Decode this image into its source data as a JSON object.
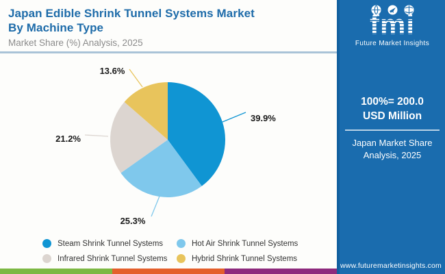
{
  "header": {
    "title_lines": [
      "Japan Edible Shrink Tunnel Systems Market",
      "By Machine Type"
    ],
    "subtitle": "Market Share (%) Analysis, 2025",
    "title_color": "#1d6ba9"
  },
  "brand": {
    "logo_text": "fmi",
    "caption": "Future Market Insights"
  },
  "sidebar": {
    "stat_value": "100%= 200.0 USD Million",
    "stat_caption": "Japan Market Share Analysis, 2025",
    "url": "www.futuremarketinsights.com",
    "bg_color": "#1a6cae"
  },
  "chart_data": {
    "type": "pie",
    "title": "Japan Edible Shrink Tunnel Systems Market By Machine Type",
    "subtitle": "Market Share (%) Analysis, 2025",
    "unit": "%",
    "total_label": "100%= 200.0 USD Million",
    "start_angle_deg": 0,
    "direction": "clockwise",
    "legend_position": "bottom",
    "slices": [
      {
        "label": "Steam Shrink Tunnel Systems",
        "value": 39.9,
        "color": "#1095d3"
      },
      {
        "label": "Hot Air Shrink Tunnel Systems",
        "value": 25.3,
        "color": "#7fc8ec"
      },
      {
        "label": "Infrared Shrink Tunnel Systems",
        "value": 21.2,
        "color": "#dcd5d0"
      },
      {
        "label": "Hybrid Shrink Tunnel Systems",
        "value": 13.6,
        "color": "#e8c45c"
      }
    ]
  },
  "footer": {
    "bar_colors": [
      "#7db843",
      "#e45f2b",
      "#8e2a7d"
    ]
  }
}
